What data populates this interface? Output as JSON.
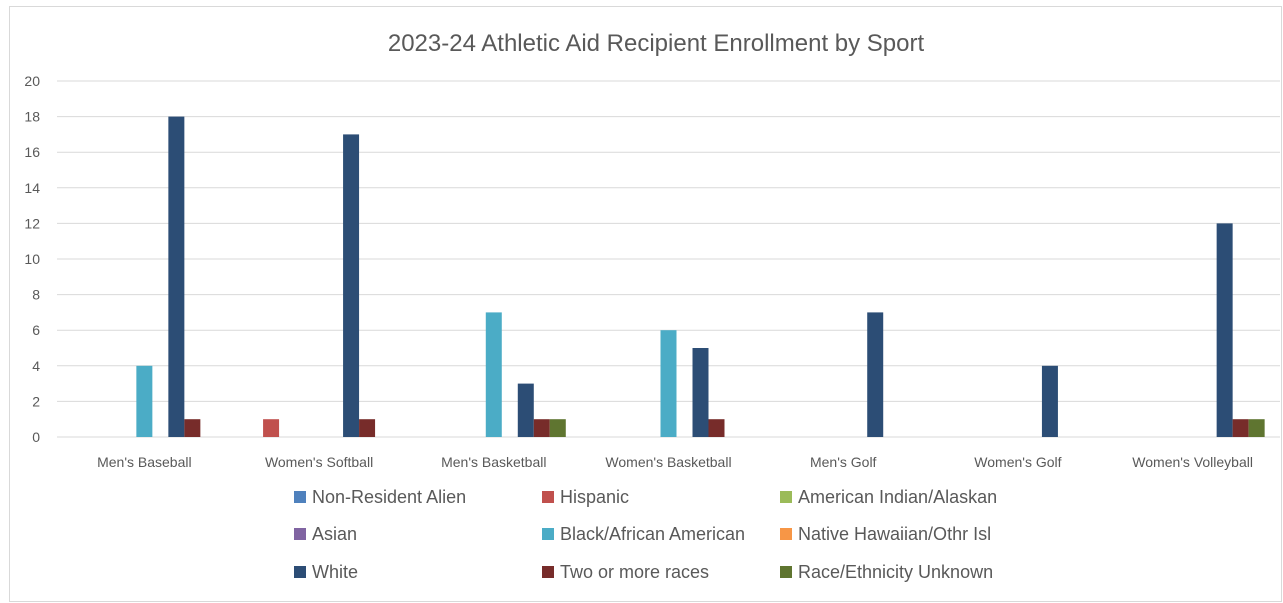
{
  "chart_data": {
    "type": "bar",
    "title": "2023-24 Athletic Aid Recipient Enrollment by Sport",
    "xlabel": "",
    "ylabel": "",
    "ylim": [
      0,
      20
    ],
    "yticks": [
      0,
      2,
      4,
      6,
      8,
      10,
      12,
      14,
      16,
      18,
      20
    ],
    "grid": true,
    "legend_position": "bottom",
    "categories": [
      "Men's Baseball",
      "Women's Softball",
      "Men's Basketball",
      "Women's Basketball",
      "Men's Golf",
      "Women's Golf",
      "Women's Volleyball"
    ],
    "series": [
      {
        "name": "Non-Resident Alien",
        "color": "#4f81bd",
        "values": [
          0,
          0,
          0,
          0,
          0,
          0,
          0
        ]
      },
      {
        "name": "Hispanic",
        "color": "#c0504d",
        "values": [
          0,
          1,
          0,
          0,
          0,
          0,
          0
        ]
      },
      {
        "name": "American Indian/Alaskan",
        "color": "#9bbb59",
        "values": [
          0,
          0,
          0,
          0,
          0,
          0,
          0
        ]
      },
      {
        "name": "Asian",
        "color": "#8064a2",
        "values": [
          0,
          0,
          0,
          0,
          0,
          0,
          0
        ]
      },
      {
        "name": "Black/African American",
        "color": "#4bacc6",
        "values": [
          4,
          0,
          7,
          6,
          0,
          0,
          0
        ]
      },
      {
        "name": "Native Hawaiian/Othr Isl",
        "color": "#f79646",
        "values": [
          0,
          0,
          0,
          0,
          0,
          0,
          0
        ]
      },
      {
        "name": "White",
        "color": "#2c4d75",
        "values": [
          18,
          17,
          3,
          5,
          7,
          4,
          12
        ]
      },
      {
        "name": "Two or more races",
        "color": "#772c2a",
        "values": [
          1,
          1,
          1,
          1,
          0,
          0,
          1
        ]
      },
      {
        "name": "Race/Ethnicity Unknown",
        "color": "#5f7530",
        "values": [
          0,
          0,
          1,
          0,
          0,
          0,
          1
        ]
      }
    ]
  }
}
